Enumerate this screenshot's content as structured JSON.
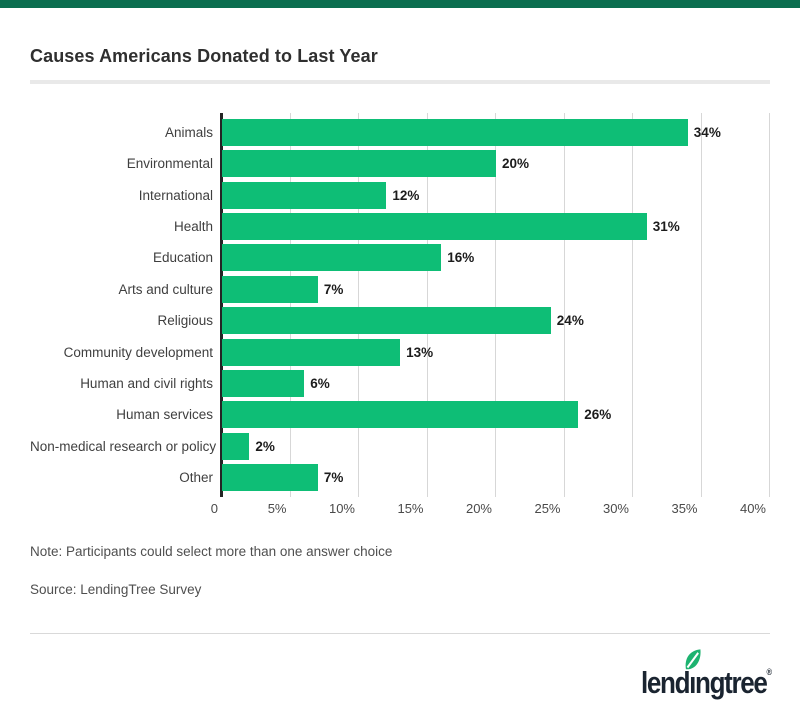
{
  "page": {
    "title": "Causes Americans Donated to Last Year",
    "note": "Note: Participants could select more than one answer choice",
    "source": "Source: LendingTree Survey",
    "brand": {
      "logo_text": "lendingtree",
      "registered_mark": "®"
    },
    "colors": {
      "top_accent_green": "#0b6e4f",
      "bar_green": "#0ebe76",
      "leaf_green": "#1db370",
      "logo_navy": "#1a2430",
      "axis_dark": "#242424",
      "gridline_gray": "#d7d7d7"
    }
  },
  "chart_data": {
    "type": "bar",
    "orientation": "horizontal",
    "title": "Causes Americans Donated to Last Year",
    "categories": [
      "Animals",
      "Environmental",
      "International",
      "Health",
      "Education",
      "Arts and culture",
      "Religious",
      "Community development",
      "Human and civil rights",
      "Human services",
      "Non-medical research or policy",
      "Other"
    ],
    "values": [
      34,
      20,
      12,
      31,
      16,
      7,
      24,
      13,
      6,
      26,
      2,
      7
    ],
    "value_labels": [
      "34%",
      "20%",
      "12%",
      "31%",
      "16%",
      "7%",
      "24%",
      "13%",
      "6%",
      "26%",
      "2%",
      "7%"
    ],
    "xlabel": "",
    "ylabel": "",
    "xlim": [
      0,
      40
    ],
    "x_ticks": [
      {
        "label": "0",
        "value": 0
      },
      {
        "label": "5%",
        "value": 5
      },
      {
        "label": "10%",
        "value": 10
      },
      {
        "label": "15%",
        "value": 15
      },
      {
        "label": "20%",
        "value": 20
      },
      {
        "label": "25%",
        "value": 25
      },
      {
        "label": "30%",
        "value": 30
      },
      {
        "label": "35%",
        "value": 35
      },
      {
        "label": "40%",
        "value": 40
      }
    ],
    "grid": true,
    "legend": false
  }
}
